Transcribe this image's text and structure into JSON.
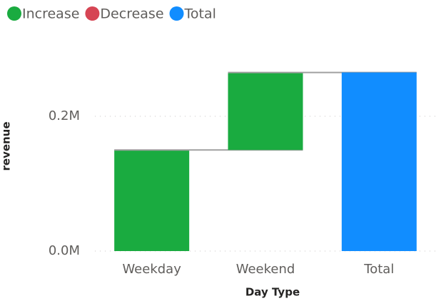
{
  "chart_data": {
    "type": "waterfall",
    "legend": [
      {
        "name": "Increase",
        "color": "#1aab40"
      },
      {
        "name": "Decrease",
        "color": "#d64554"
      },
      {
        "name": "Total",
        "color": "#118dff"
      }
    ],
    "categories": [
      "Weekday",
      "Weekend",
      "Total"
    ],
    "values": [
      150000,
      115000,
      265000
    ],
    "colors": [
      "#1aab40",
      "#1aab40",
      "#118dff"
    ],
    "x_label": "Day Type",
    "y_label": "revenue",
    "ylim": [
      0,
      280000
    ],
    "yticks": [
      {
        "value": 0,
        "label": "0.0M"
      },
      {
        "value": 200000,
        "label": "0.2M"
      }
    ],
    "grid": true
  }
}
